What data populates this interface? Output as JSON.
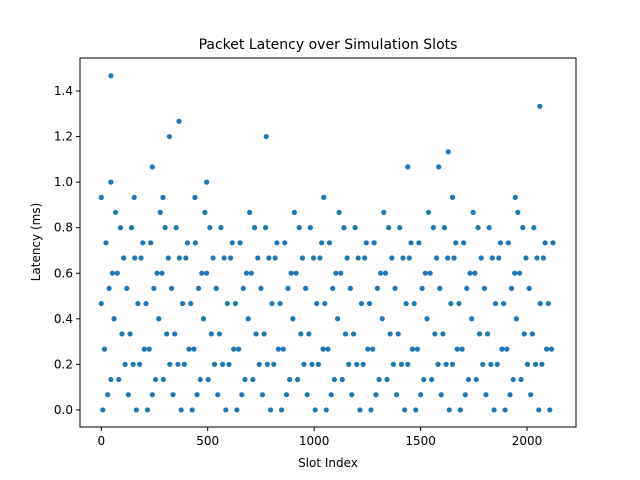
{
  "chart_data": {
    "type": "scatter",
    "title": "Packet Latency over Simulation Slots",
    "xlabel": "Slot Index",
    "ylabel": "Latency (ms)",
    "xlim": [
      -100,
      2230
    ],
    "ylim": [
      -0.075,
      1.545
    ],
    "x_ticks": [
      0,
      500,
      1000,
      1500,
      2000
    ],
    "x_tick_labels": [
      "0",
      "500",
      "1000",
      "1500",
      "2000"
    ],
    "y_ticks": [
      0.0,
      0.2,
      0.4,
      0.6,
      0.8,
      1.0,
      1.2,
      1.4
    ],
    "y_tick_labels": [
      "0.0",
      "0.2",
      "0.4",
      "0.6",
      "0.8",
      "1.0",
      "1.2",
      "1.4"
    ],
    "grid": false,
    "marker_color": "#1f77b4",
    "pattern": {
      "slot_start": 0,
      "slot_end": 2120,
      "slot_step": 15,
      "latency_unit_ms": 0.0667,
      "latency_levels": 14
    },
    "outliers": [
      {
        "x": 45,
        "y": 1.467
      },
      {
        "x": 45,
        "y": 1.0
      },
      {
        "x": 240,
        "y": 1.067
      },
      {
        "x": 320,
        "y": 1.2
      },
      {
        "x": 365,
        "y": 1.267
      },
      {
        "x": 495,
        "y": 1.0
      },
      {
        "x": 775,
        "y": 1.2
      },
      {
        "x": 1440,
        "y": 1.067
      },
      {
        "x": 1585,
        "y": 1.067
      },
      {
        "x": 1630,
        "y": 1.133
      },
      {
        "x": 2060,
        "y": 1.333
      },
      {
        "x": 0,
        "y": 0.933
      },
      {
        "x": 155,
        "y": 0.933
      },
      {
        "x": 290,
        "y": 0.933
      },
      {
        "x": 440,
        "y": 0.933
      },
      {
        "x": 1045,
        "y": 0.933
      },
      {
        "x": 1650,
        "y": 0.933
      },
      {
        "x": 1945,
        "y": 0.933
      }
    ]
  }
}
